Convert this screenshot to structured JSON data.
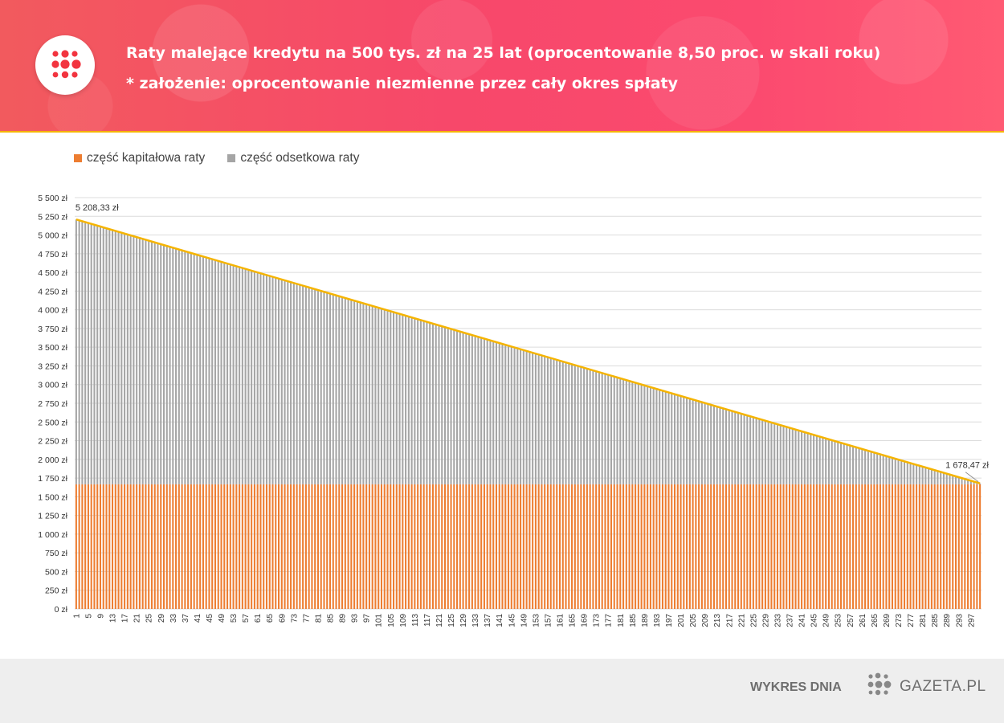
{
  "header": {
    "title_line1": "Raty malejące kredytu na 500 tys. zł na 25 lat (oprocentowanie 8,50 proc. w skali roku)",
    "title_line2": "* założenie: oprocentowanie niezmienne przez cały okres spłaty",
    "logo_icon": "gazeta-dots-icon"
  },
  "legend": {
    "capital_label": "część kapitałowa raty",
    "interest_label": "część odsetkowa raty"
  },
  "colors": {
    "capital": "#ed7d31",
    "interest": "#a5a5a5",
    "total_line": "#f5b400",
    "header_accent": "#f5b400",
    "logo_red": "#f2343f"
  },
  "chart_data": {
    "type": "bar",
    "stacked": true,
    "loan_amount": 500000,
    "annual_rate_percent": 8.5,
    "months": 300,
    "x_tick_labels": [
      "1",
      "5",
      "9",
      "13",
      "17",
      "21",
      "25",
      "29",
      "33",
      "37",
      "41",
      "45",
      "49",
      "53",
      "57",
      "61",
      "65",
      "69",
      "73",
      "77",
      "81",
      "85",
      "89",
      "93",
      "97",
      "101",
      "105",
      "109",
      "113",
      "117",
      "121",
      "125",
      "129",
      "133",
      "137",
      "141",
      "145",
      "149",
      "153",
      "157",
      "161",
      "165",
      "169",
      "173",
      "177",
      "181",
      "185",
      "189",
      "193",
      "197",
      "201",
      "205",
      "209",
      "213",
      "217",
      "221",
      "225",
      "229",
      "233",
      "237",
      "241",
      "245",
      "249",
      "253",
      "257",
      "261",
      "265",
      "269",
      "273",
      "277",
      "281",
      "285",
      "289",
      "293",
      "297"
    ],
    "y_tick_labels": [
      "0 zł",
      "250 zł",
      "500 zł",
      "750 zł",
      "1 000 zł",
      "1 250 zł",
      "1 500 zł",
      "1 750 zł",
      "2 000 zł",
      "2 250 zł",
      "2 500 zł",
      "2 750 zł",
      "3 000 zł",
      "3 250 zł",
      "3 500 zł",
      "3 750 zł",
      "4 000 zł",
      "4 250 zł",
      "4 500 zł",
      "4 750 zł",
      "5 000 zł",
      "5 250 zł",
      "5 500 zł"
    ],
    "ylim": [
      0,
      5500
    ],
    "series": [
      {
        "name": "część kapitałowa raty",
        "rule": "constant",
        "value": 1666.67
      },
      {
        "name": "część odsetkowa raty",
        "rule": "linear",
        "first": 3541.67,
        "last": 11.81
      }
    ],
    "total_first": 5208.33,
    "total_last": 1678.47,
    "annotations": [
      {
        "text": "5 208,33 zł",
        "month": 1
      },
      {
        "text": "1 678,47 zł",
        "month": 300
      }
    ],
    "grid": true,
    "legend_position": "top-left"
  },
  "footer": {
    "label": "WYKRES DNIA",
    "brand": "GAZETA.PL",
    "logo_icon": "gazeta-dots-icon"
  }
}
